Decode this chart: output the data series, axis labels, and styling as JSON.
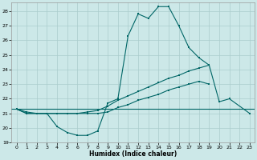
{
  "xlabel": "Humidex (Indice chaleur)",
  "bg_color": "#cce8e8",
  "grid_color": "#aacccc",
  "line_color": "#006666",
  "xlim": [
    -0.5,
    23.5
  ],
  "ylim": [
    19,
    28.6
  ],
  "yticks": [
    19,
    20,
    21,
    22,
    23,
    24,
    25,
    26,
    27,
    28
  ],
  "xticks": [
    0,
    1,
    2,
    3,
    4,
    5,
    6,
    7,
    8,
    9,
    10,
    11,
    12,
    13,
    14,
    15,
    16,
    17,
    18,
    19,
    20,
    21,
    22,
    23
  ],
  "line1_y": [
    21.3,
    21.0,
    21.0,
    21.0,
    20.1,
    19.7,
    19.5,
    19.5,
    19.8,
    21.7,
    22.0,
    26.3,
    27.8,
    27.5,
    28.3,
    28.3,
    27.0,
    25.5,
    24.8,
    24.3
  ],
  "line1_x": [
    0,
    1,
    2,
    3,
    4,
    5,
    6,
    7,
    8,
    9,
    10,
    11,
    12,
    13,
    14,
    15,
    16,
    17,
    18,
    19
  ],
  "line2_x": [
    0,
    1,
    2,
    3,
    4,
    5,
    6,
    7,
    8,
    9,
    10,
    11,
    12,
    13,
    14,
    15,
    16,
    17,
    18,
    19,
    20,
    21,
    23
  ],
  "line2_y": [
    21.3,
    21.1,
    21.0,
    21.0,
    21.0,
    21.0,
    21.0,
    21.1,
    21.2,
    21.5,
    21.9,
    22.2,
    22.5,
    22.8,
    23.1,
    23.4,
    23.6,
    23.9,
    24.1,
    24.3,
    21.8,
    22.0,
    21.0
  ],
  "line3_x": [
    0,
    1,
    2,
    3,
    4,
    5,
    6,
    7,
    8,
    9,
    10,
    11,
    12,
    13,
    14,
    15,
    16,
    17,
    18,
    19
  ],
  "line3_y": [
    21.3,
    21.0,
    21.0,
    21.0,
    21.0,
    21.0,
    21.0,
    21.0,
    21.0,
    21.1,
    21.4,
    21.6,
    21.9,
    22.1,
    22.3,
    22.6,
    22.8,
    23.0,
    23.2,
    23.0
  ],
  "hline_y": 21.3
}
